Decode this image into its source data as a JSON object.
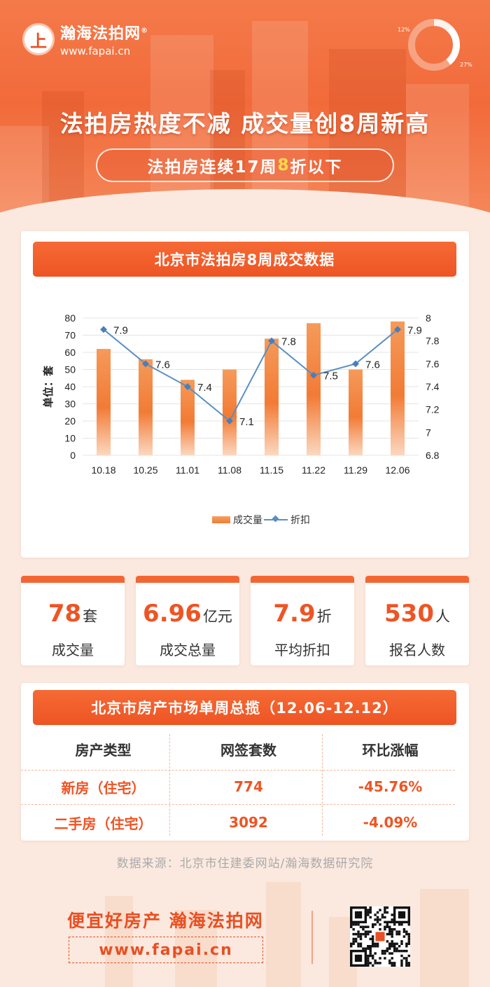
{
  "brand": {
    "name": "瀚海法拍网",
    "reg_mark": "®",
    "url": "www.fapai.cn",
    "logo_glyph": "上"
  },
  "header": {
    "donut_labels": [
      "12%",
      "27%"
    ],
    "donut_values": [
      12,
      27
    ],
    "title": "法拍房热度不减 成交量创8周新高",
    "subtitle_pre": "法拍房连续17周",
    "subtitle_hl": "8",
    "subtitle_post": "折以下"
  },
  "chart_section": {
    "banner": "北京市法拍房8周成交数据"
  },
  "chart_data": {
    "type": "bar",
    "categories": [
      "10.18",
      "10.25",
      "11.01",
      "11.08",
      "11.15",
      "11.22",
      "11.29",
      "12.06"
    ],
    "series": [
      {
        "name": "成交量",
        "type": "bar",
        "axis": "left",
        "values": [
          62,
          56,
          44,
          50,
          68,
          77,
          50,
          78
        ]
      },
      {
        "name": "折扣",
        "type": "line",
        "axis": "right",
        "values": [
          7.9,
          7.6,
          7.4,
          7.1,
          7.8,
          7.5,
          7.6,
          7.9
        ]
      }
    ],
    "ylabel": "单位：套",
    "ylim": [
      0,
      80
    ],
    "yticks": [
      "0",
      "10",
      "20",
      "30",
      "40",
      "50",
      "60",
      "70",
      "80"
    ],
    "y2lim": [
      6.8,
      8
    ],
    "y2ticks": [
      "6.8",
      "7",
      "7.2",
      "7.4",
      "7.6",
      "7.8",
      "8"
    ],
    "grid": true,
    "legend_position": "bottom"
  },
  "stats": [
    {
      "value": "78",
      "unit": "套",
      "label": "成交量"
    },
    {
      "value": "6.96",
      "unit": "亿元",
      "label": "成交总量"
    },
    {
      "value": "7.9",
      "unit": "折",
      "label": "平均折扣"
    },
    {
      "value": "530",
      "unit": "人",
      "label": "报名人数"
    }
  ],
  "market": {
    "banner": "北京市房产市场单周总揽（12.06-12.12）",
    "headers": [
      "房产类型",
      "网签套数",
      "环比涨幅"
    ],
    "rows": [
      [
        "新房（住宅）",
        "774",
        "-45.76%"
      ],
      [
        "二手房（住宅）",
        "3092",
        "-4.09%"
      ]
    ]
  },
  "source": "数据来源：北京市住建委网站/瀚海数据研究院",
  "footer": {
    "slogan": "便宜好房产 瀚海法拍网",
    "url": "www.fapai.cn"
  },
  "colors": {
    "accent": "#ee5424",
    "bar": "#f27b35",
    "line": "#5b8fc2"
  }
}
